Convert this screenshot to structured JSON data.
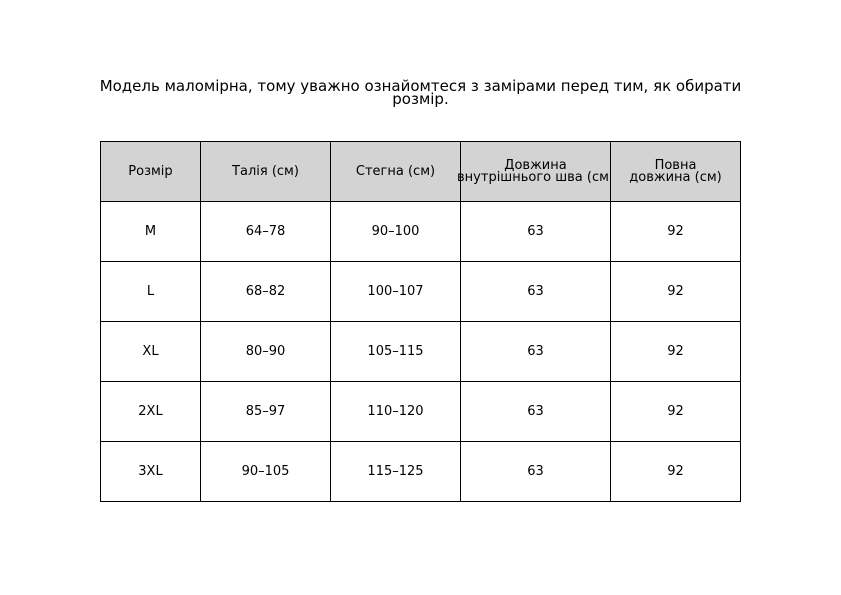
{
  "title": {
    "line1": "Модель маломірна, тому уважно ознайомтеся з замірами перед тим, як обирати",
    "line2": "розмір."
  },
  "table": {
    "headers": [
      "Розмір",
      "Талія (см)",
      "Стегна (см)",
      "Довжина\nвнутрішнього шва (см)",
      "Повна\nдовжина (см)"
    ],
    "rows": [
      [
        "M",
        "64–78",
        "90–100",
        "63",
        "92"
      ],
      [
        "L",
        "68–82",
        "100–107",
        "63",
        "92"
      ],
      [
        "XL",
        "80–90",
        "105–115",
        "63",
        "92"
      ],
      [
        "2XL",
        "85–97",
        "110–120",
        "63",
        "92"
      ],
      [
        "3XL",
        "90–105",
        "115–125",
        "63",
        "92"
      ]
    ],
    "header_color": "#d3d3d3"
  }
}
